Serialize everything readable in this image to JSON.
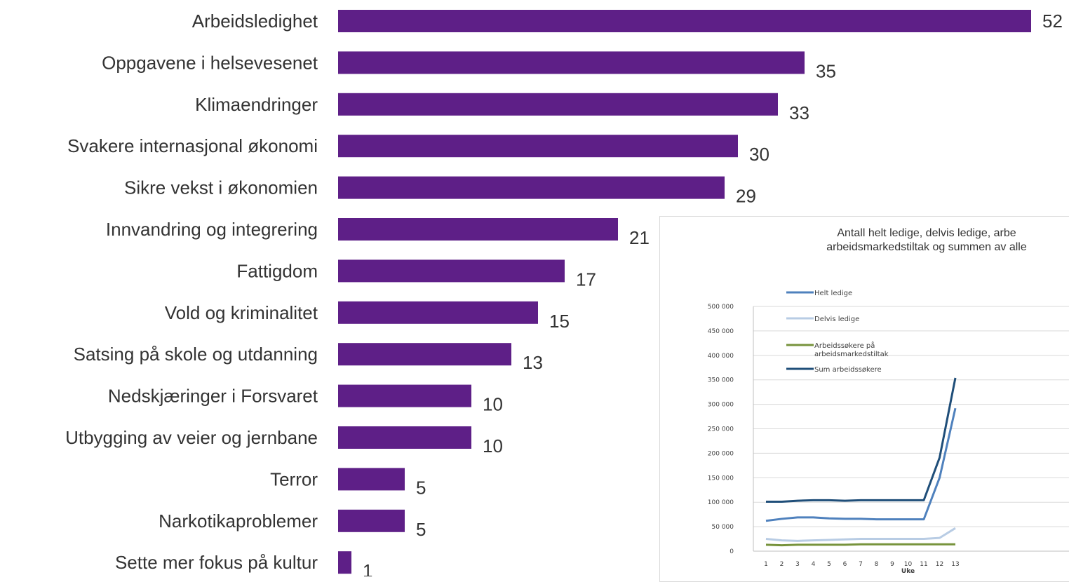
{
  "chart_data": [
    {
      "type": "bar",
      "orientation": "horizontal",
      "categories": [
        "Arbeidsledighet",
        "Oppgavene i helsevesenet",
        "Klimaendringer",
        "Svakere internasjonal økonomi",
        "Sikre vekst i økonomien",
        "Innvandring og integrering",
        "Fattigdom",
        "Vold og kriminalitet",
        "Satsing på skole og utdanning",
        "Nedskjæringer i Forsvaret",
        "Utbygging av veier og jernbane",
        "Terror",
        "Narkotikaproblemer",
        "Sette mer fokus på kultur"
      ],
      "values": [
        52,
        35,
        33,
        30,
        29,
        21,
        17,
        15,
        13,
        10,
        10,
        5,
        5,
        1
      ],
      "value_labels": [
        "52",
        "35",
        "33",
        "30",
        "29",
        "21",
        "17",
        "15",
        "13",
        "10",
        "10",
        "5",
        "5",
        "1"
      ],
      "bar_color": "#5e1f87",
      "xlim": [
        0,
        52
      ],
      "grid": false
    },
    {
      "type": "line",
      "title_lines": [
        "Antall helt ledige, delvis ledige, arbe",
        "arbeidsmarkedstiltak og summen av alle"
      ],
      "xlabel": "Uke",
      "x": [
        1,
        2,
        3,
        4,
        5,
        6,
        7,
        8,
        9,
        10,
        11,
        12,
        13
      ],
      "x_tick_labels": [
        "1",
        "2",
        "3",
        "4",
        "5",
        "6",
        "7",
        "8",
        "9",
        "10",
        "11",
        "12",
        "13"
      ],
      "y_tick_labels": [
        "0",
        "50 000",
        "100 000",
        "150 000",
        "200 000",
        "250 000",
        "300 000",
        "350 000",
        "400 000",
        "450 000",
        "500 000"
      ],
      "ylim": [
        0,
        500000
      ],
      "grid": true,
      "legend_position": "top-left",
      "series": [
        {
          "name": "Helt ledige",
          "color": "#4f81bd",
          "values": [
            62000,
            66000,
            69000,
            69000,
            67000,
            66000,
            66000,
            65000,
            65000,
            65000,
            65000,
            150000,
            292000
          ]
        },
        {
          "name": "Delvis ledige",
          "color": "#b8cce4",
          "values": [
            25000,
            22000,
            21000,
            22000,
            23000,
            24000,
            25000,
            25000,
            25000,
            25000,
            25000,
            27000,
            47000
          ]
        },
        {
          "name": "Arbeidssøkere på arbeidsmarkedstiltak",
          "legend_lines": [
            "Arbeidssøkere på",
            "arbeidsmarkedstiltak"
          ],
          "color": "#77933c",
          "values": [
            13000,
            12000,
            13000,
            13000,
            13000,
            13000,
            14000,
            14000,
            14000,
            14000,
            14000,
            14000,
            14000
          ]
        },
        {
          "name": "Sum arbeidssøkere",
          "color": "#1f4e79",
          "values": [
            101000,
            101000,
            103000,
            104000,
            104000,
            103000,
            104000,
            104000,
            104000,
            104000,
            104000,
            191000,
            354000
          ]
        }
      ]
    }
  ]
}
